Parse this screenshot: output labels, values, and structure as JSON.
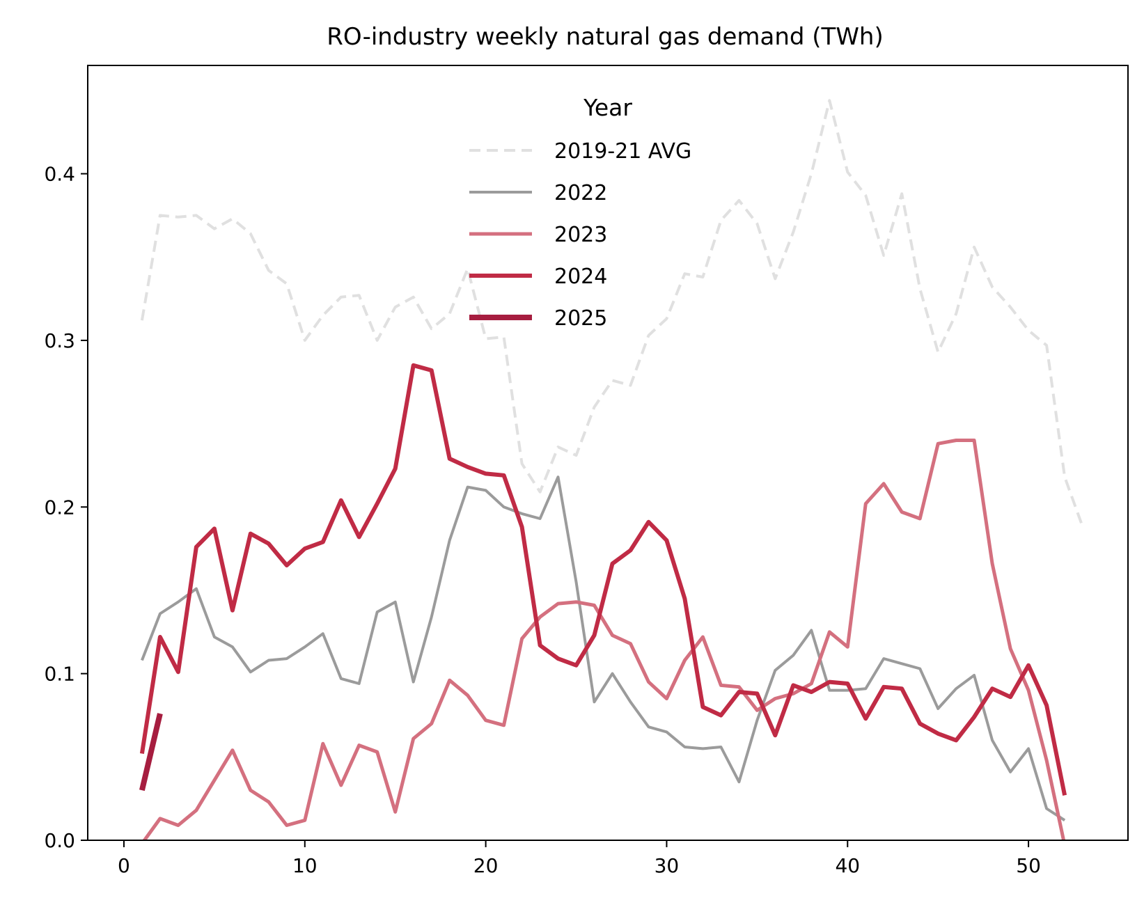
{
  "chart_data": {
    "type": "line",
    "title": "RO-industry weekly natural gas demand (TWh)",
    "xlabel": "",
    "ylabel": "",
    "xlim": [
      -2,
      55.5
    ],
    "ylim": [
      0,
      0.465
    ],
    "xticks": [
      0,
      10,
      20,
      30,
      40,
      50
    ],
    "yticks": [
      0.0,
      0.1,
      0.2,
      0.3,
      0.4
    ],
    "xtick_labels": [
      "0",
      "10",
      "20",
      "30",
      "40",
      "50"
    ],
    "ytick_labels": [
      "0.0",
      "0.1",
      "0.2",
      "0.3",
      "0.4"
    ],
    "grid": false,
    "legend": {
      "title": "Year",
      "placement": "upper center"
    },
    "series": [
      {
        "name": "2019-21 AVG",
        "color": "#e0e0e0",
        "style": "dashed",
        "x": [
          1,
          2,
          3,
          4,
          5,
          6,
          7,
          8,
          9,
          10,
          11,
          12,
          13,
          14,
          15,
          16,
          17,
          18,
          19,
          20,
          21,
          22,
          23,
          24,
          25,
          26,
          27,
          28,
          29,
          30,
          31,
          32,
          33,
          34,
          35,
          36,
          37,
          38,
          39,
          40,
          41,
          42,
          43,
          44,
          45,
          46,
          47,
          48,
          49,
          50,
          51,
          52,
          53
        ],
        "values": [
          0.312,
          0.375,
          0.374,
          0.375,
          0.367,
          0.373,
          0.364,
          0.342,
          0.334,
          0.3,
          0.315,
          0.326,
          0.327,
          0.3,
          0.32,
          0.326,
          0.307,
          0.316,
          0.343,
          0.301,
          0.302,
          0.226,
          0.209,
          0.236,
          0.231,
          0.26,
          0.276,
          0.273,
          0.303,
          0.313,
          0.34,
          0.338,
          0.372,
          0.384,
          0.37,
          0.337,
          0.365,
          0.4,
          0.444,
          0.401,
          0.387,
          0.351,
          0.388,
          0.331,
          0.293,
          0.316,
          0.356,
          0.332,
          0.32,
          0.306,
          0.297,
          0.218,
          0.188
        ]
      },
      {
        "name": "2022",
        "color": "#9b9b9b",
        "style": "solid",
        "x": [
          1,
          2,
          3,
          4,
          5,
          6,
          7,
          8,
          9,
          10,
          11,
          12,
          13,
          14,
          15,
          16,
          17,
          18,
          19,
          20,
          21,
          22,
          23,
          24,
          25,
          26,
          27,
          28,
          29,
          30,
          31,
          32,
          33,
          34,
          35,
          36,
          37,
          38,
          39,
          40,
          41,
          42,
          43,
          44,
          45,
          46,
          47,
          48,
          49,
          50,
          51,
          52
        ],
        "values": [
          0.108,
          0.136,
          0.143,
          0.151,
          0.122,
          0.116,
          0.101,
          0.108,
          0.109,
          0.116,
          0.124,
          0.097,
          0.094,
          0.137,
          0.143,
          0.095,
          0.134,
          0.18,
          0.212,
          0.21,
          0.2,
          0.196,
          0.193,
          0.218,
          0.155,
          0.083,
          0.1,
          0.083,
          0.068,
          0.065,
          0.056,
          0.055,
          0.056,
          0.035,
          0.072,
          0.102,
          0.111,
          0.126,
          0.09,
          0.09,
          0.091,
          0.109,
          0.106,
          0.103,
          0.079,
          0.091,
          0.099,
          0.06,
          0.041,
          0.055,
          0.019,
          0.012
        ]
      },
      {
        "name": "2023",
        "color": "#d4707f",
        "style": "solid",
        "x": [
          1,
          2,
          3,
          4,
          5,
          6,
          7,
          8,
          9,
          10,
          11,
          12,
          13,
          14,
          15,
          16,
          17,
          18,
          19,
          20,
          21,
          22,
          23,
          24,
          25,
          26,
          27,
          28,
          29,
          30,
          31,
          32,
          33,
          34,
          35,
          36,
          37,
          38,
          39,
          40,
          41,
          42,
          43,
          44,
          45,
          46,
          47,
          48,
          49,
          50,
          51,
          52
        ],
        "values": [
          -0.002,
          0.013,
          0.009,
          0.018,
          0.036,
          0.054,
          0.03,
          0.023,
          0.009,
          0.012,
          0.058,
          0.033,
          0.057,
          0.053,
          0.017,
          0.061,
          0.07,
          0.096,
          0.087,
          0.072,
          0.069,
          0.121,
          0.134,
          0.142,
          0.143,
          0.141,
          0.123,
          0.118,
          0.095,
          0.085,
          0.108,
          0.122,
          0.093,
          0.092,
          0.078,
          0.085,
          0.088,
          0.094,
          0.125,
          0.116,
          0.202,
          0.214,
          0.197,
          0.193,
          0.238,
          0.24,
          0.24,
          0.166,
          0.115,
          0.09,
          0.048,
          -0.003
        ]
      },
      {
        "name": "2024",
        "color": "#c02b45",
        "style": "solid",
        "x": [
          1,
          2,
          3,
          4,
          5,
          6,
          7,
          8,
          9,
          10,
          11,
          12,
          13,
          14,
          15,
          16,
          17,
          18,
          19,
          20,
          21,
          22,
          23,
          24,
          25,
          26,
          27,
          28,
          29,
          30,
          31,
          32,
          33,
          34,
          35,
          36,
          37,
          38,
          39,
          40,
          41,
          42,
          43,
          44,
          45,
          46,
          47,
          48,
          49,
          50,
          51,
          52
        ],
        "values": [
          0.052,
          0.122,
          0.101,
          0.176,
          0.187,
          0.138,
          0.184,
          0.178,
          0.165,
          0.175,
          0.179,
          0.204,
          0.182,
          0.202,
          0.223,
          0.285,
          0.282,
          0.229,
          0.224,
          0.22,
          0.219,
          0.188,
          0.117,
          0.109,
          0.105,
          0.123,
          0.166,
          0.174,
          0.191,
          0.18,
          0.145,
          0.08,
          0.075,
          0.089,
          0.088,
          0.063,
          0.093,
          0.089,
          0.095,
          0.094,
          0.073,
          0.092,
          0.091,
          0.07,
          0.064,
          0.06,
          0.074,
          0.091,
          0.086,
          0.105,
          0.081,
          0.027
        ]
      },
      {
        "name": "2025",
        "color": "#a61d3f",
        "style": "solid",
        "x": [
          1,
          2
        ],
        "values": [
          0.03,
          0.076
        ]
      }
    ]
  }
}
